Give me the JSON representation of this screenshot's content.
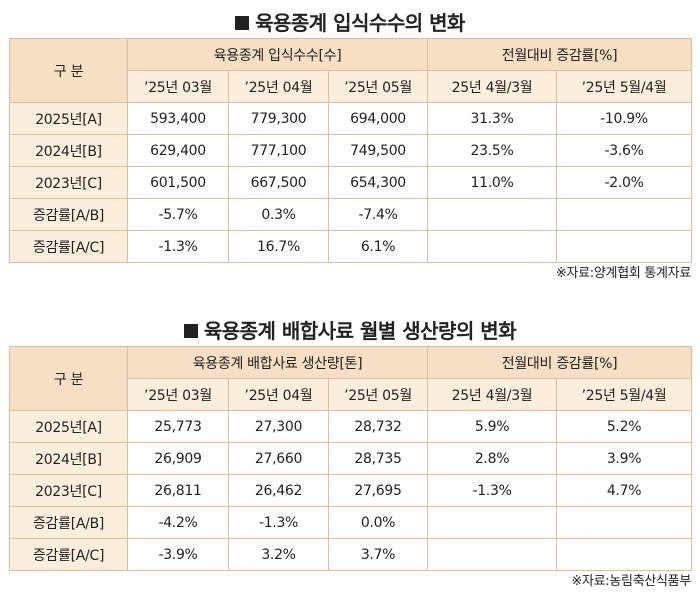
{
  "tables": [
    {
      "title": "육용종계 입식수수의 변화",
      "corner": "구 분",
      "group1": "육용종계 입식수수[수]",
      "group2": "전월대비 증감률[%]",
      "subs": [
        "’25년 03월",
        "’25년 04월",
        "’25년 05월",
        "25년 4월/3월",
        "’25년 5월/4월"
      ],
      "rows": [
        {
          "label": "2025년[A]",
          "cells": [
            "593,400",
            "779,300",
            "694,000",
            "31.3%",
            "-10.9%"
          ]
        },
        {
          "label": "2024년[B]",
          "cells": [
            "629,400",
            "777,100",
            "749,500",
            "23.5%",
            "-3.6%"
          ]
        },
        {
          "label": "2023년[C]",
          "cells": [
            "601,500",
            "667,500",
            "654,300",
            "11.0%",
            "-2.0%"
          ]
        },
        {
          "label": "증감률[A/B]",
          "cells": [
            "-5.7%",
            "0.3%",
            "-7.4%",
            "",
            ""
          ]
        },
        {
          "label": "증감률[A/C]",
          "cells": [
            "-1.3%",
            "16.7%",
            "6.1%",
            "",
            ""
          ]
        }
      ],
      "source": "※자료:양계협회 통계자료"
    },
    {
      "title": "육용종계 배합사료 월별 생산량의 변화",
      "corner": "구 분",
      "group1": "육용종계 배합사료 생산량[톤]",
      "group2": "전월대비 증감률[%]",
      "subs": [
        "’25년 03월",
        "’25년 04월",
        "’25년 05월",
        "25년 4월/3월",
        "’25년 5월/4월"
      ],
      "rows": [
        {
          "label": "2025년[A]",
          "cells": [
            "25,773",
            "27,300",
            "28,732",
            "5.9%",
            "5.2%"
          ]
        },
        {
          "label": "2024년[B]",
          "cells": [
            "26,909",
            "27,660",
            "28,735",
            "2.8%",
            "3.9%"
          ]
        },
        {
          "label": "2023년[C]",
          "cells": [
            "26,811",
            "26,462",
            "27,695",
            "-1.3%",
            "4.7%"
          ]
        },
        {
          "label": "증감률[A/B]",
          "cells": [
            "-4.2%",
            "-1.3%",
            "0.0%",
            "",
            ""
          ]
        },
        {
          "label": "증감률[A/C]",
          "cells": [
            "-3.9%",
            "3.2%",
            "3.7%",
            "",
            ""
          ]
        }
      ],
      "source": "※자료:농림축산식품부"
    }
  ]
}
